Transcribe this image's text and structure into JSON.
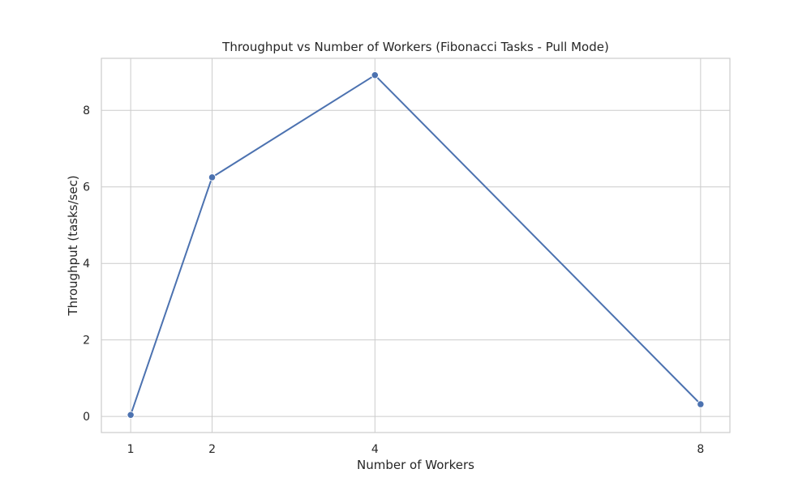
{
  "chart_data": {
    "type": "line",
    "title": "Throughput vs Number of Workers (Fibonacci Tasks - Pull Mode)",
    "xlabel": "Number of Workers",
    "ylabel": "Throughput (tasks/sec)",
    "x_ticks": [
      1,
      2,
      4,
      8
    ],
    "y_ticks": [
      0,
      2,
      4,
      6,
      8
    ],
    "xlim": [
      0.64,
      8.36
    ],
    "ylim": [
      -0.42,
      9.36
    ],
    "grid": true,
    "legend": "none",
    "series": [
      {
        "color": "#4c72b0",
        "marker": "circle",
        "x": [
          1,
          2,
          4,
          8
        ],
        "values": [
          0.04,
          6.25,
          8.92,
          0.32
        ]
      }
    ]
  }
}
